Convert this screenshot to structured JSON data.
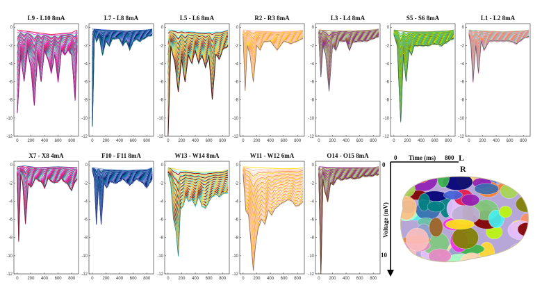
{
  "chart_data": [
    {
      "type": "area",
      "title": "L9 - L10 8mA",
      "xlim": [
        -50,
        900
      ],
      "ylim": [
        -12,
        0.4
      ],
      "xticks": [
        0,
        200,
        400,
        600,
        800
      ],
      "yticks": [
        0,
        -2,
        -4,
        -6,
        -8,
        -10,
        -12
      ],
      "trough": [
        [
          0,
          -9.5
        ],
        [
          50,
          -3
        ],
        [
          100,
          -6
        ],
        [
          150,
          -2.5
        ],
        [
          200,
          -4.5
        ],
        [
          250,
          -8.6
        ],
        [
          300,
          -3
        ],
        [
          350,
          -6
        ],
        [
          400,
          -2.5
        ],
        [
          450,
          -3.5
        ],
        [
          500,
          -5
        ],
        [
          550,
          -3
        ],
        [
          600,
          -6
        ],
        [
          650,
          -2.5
        ],
        [
          700,
          -3
        ],
        [
          750,
          -2.5
        ],
        [
          800,
          -3
        ],
        [
          850,
          -8
        ],
        [
          880,
          -2
        ]
      ],
      "crest": [
        [
          0,
          -0.3
        ],
        [
          200,
          -0.5
        ],
        [
          500,
          -0.8
        ],
        [
          800,
          -0.6
        ],
        [
          880,
          -0.3
        ]
      ]
    },
    {
      "type": "area",
      "title": "L7 - L8 8mA",
      "xlim": [
        -50,
        900
      ],
      "ylim": [
        -12,
        0.4
      ],
      "xticks": [
        0,
        200,
        400,
        600,
        800
      ],
      "yticks": [
        0,
        -2,
        -4,
        -6,
        -8,
        -10,
        -12
      ],
      "trough": [
        [
          0,
          -11
        ],
        [
          30,
          -0.5
        ],
        [
          60,
          -1.5
        ],
        [
          100,
          -1
        ],
        [
          150,
          -3
        ],
        [
          200,
          -1.5
        ],
        [
          250,
          -2
        ],
        [
          300,
          -1.2
        ],
        [
          400,
          -1.2
        ],
        [
          450,
          -2
        ],
        [
          500,
          -1.4
        ],
        [
          550,
          -2.5
        ],
        [
          600,
          -1.5
        ],
        [
          650,
          -1.3
        ],
        [
          700,
          -1.5
        ],
        [
          800,
          -1
        ],
        [
          880,
          -0.8
        ]
      ],
      "crest": [
        [
          0,
          -0.2
        ],
        [
          200,
          -0.3
        ],
        [
          500,
          -0.4
        ],
        [
          800,
          -0.3
        ],
        [
          880,
          -0.2
        ]
      ]
    },
    {
      "type": "area",
      "title": "L5 - L6 8mA",
      "xlim": [
        -50,
        900
      ],
      "ylim": [
        -12,
        0.4
      ],
      "xticks": [
        0,
        200,
        400,
        600,
        800
      ],
      "yticks": [
        0,
        -2,
        -4,
        -6,
        -8,
        -10,
        -12
      ],
      "trough": [
        [
          0,
          -12
        ],
        [
          40,
          -2
        ],
        [
          100,
          -4
        ],
        [
          150,
          -7
        ],
        [
          200,
          -3.5
        ],
        [
          250,
          -6
        ],
        [
          300,
          -3
        ],
        [
          350,
          -4
        ],
        [
          400,
          -2.5
        ],
        [
          450,
          -4
        ],
        [
          500,
          -3
        ],
        [
          550,
          -4.5
        ],
        [
          600,
          -3
        ],
        [
          650,
          -8
        ],
        [
          700,
          -3
        ],
        [
          750,
          -3.5
        ],
        [
          800,
          -2.5
        ],
        [
          880,
          -2
        ]
      ],
      "crest": [
        [
          0,
          -0.3
        ],
        [
          200,
          -0.4
        ],
        [
          500,
          -0.6
        ],
        [
          800,
          -0.5
        ],
        [
          880,
          -0.3
        ]
      ]
    },
    {
      "type": "area",
      "title": "R2 - R3 8mA",
      "xlim": [
        -50,
        900
      ],
      "ylim": [
        -12,
        0.4
      ],
      "xticks": [
        0,
        200,
        400,
        600,
        800
      ],
      "yticks": [
        0,
        -2,
        -4,
        -6,
        -8,
        -10,
        -12
      ],
      "trough": [
        [
          0,
          -1
        ],
        [
          30,
          -7
        ],
        [
          60,
          -2
        ],
        [
          100,
          -3
        ],
        [
          150,
          -6
        ],
        [
          200,
          -2
        ],
        [
          250,
          -2.5
        ],
        [
          300,
          -1.6
        ],
        [
          400,
          -1.5
        ],
        [
          500,
          -2.5
        ],
        [
          600,
          -1.5
        ],
        [
          700,
          -1.8
        ],
        [
          800,
          -1.5
        ],
        [
          880,
          -1.2
        ]
      ],
      "crest": [
        [
          0,
          -0.3
        ],
        [
          200,
          -0.4
        ],
        [
          500,
          -0.5
        ],
        [
          800,
          -0.4
        ],
        [
          880,
          -0.3
        ]
      ]
    },
    {
      "type": "area",
      "title": "L3 - L4 8mA",
      "xlim": [
        -50,
        900
      ],
      "ylim": [
        -12,
        0.4
      ],
      "xticks": [
        0,
        200,
        400,
        600,
        800
      ],
      "yticks": [
        0,
        -2,
        -4,
        -6,
        -8,
        -10,
        -12
      ],
      "trough": [
        [
          0,
          -1
        ],
        [
          30,
          -5.5
        ],
        [
          60,
          -2
        ],
        [
          100,
          -3
        ],
        [
          150,
          -7
        ],
        [
          200,
          -2
        ],
        [
          250,
          -2.5
        ],
        [
          300,
          -1.5
        ],
        [
          400,
          -1.5
        ],
        [
          450,
          -2.5
        ],
        [
          500,
          -1.6
        ],
        [
          600,
          -1.5
        ],
        [
          700,
          -1.5
        ],
        [
          800,
          -1.2
        ],
        [
          880,
          -1
        ]
      ],
      "crest": [
        [
          0,
          -0.3
        ],
        [
          200,
          -0.4
        ],
        [
          500,
          -0.4
        ],
        [
          800,
          -0.3
        ],
        [
          880,
          -0.2
        ]
      ]
    },
    {
      "type": "area",
      "title": "S5 - S6 8mA",
      "xlim": [
        -50,
        900
      ],
      "ylim": [
        -12,
        0.4
      ],
      "xticks": [
        0,
        200,
        400,
        600,
        800
      ],
      "yticks": [
        0,
        -2,
        -4,
        -6,
        -8,
        -10,
        -12
      ],
      "trough": [
        [
          0,
          -0.8
        ],
        [
          50,
          -2
        ],
        [
          100,
          -10.5
        ],
        [
          140,
          -3
        ],
        [
          180,
          -6
        ],
        [
          220,
          -2.5
        ],
        [
          260,
          -3
        ],
        [
          300,
          -2
        ],
        [
          400,
          -2
        ],
        [
          500,
          -2
        ],
        [
          600,
          -1.8
        ],
        [
          700,
          -2
        ],
        [
          800,
          -1.5
        ],
        [
          880,
          -1.2
        ]
      ],
      "crest": [
        [
          0,
          -0.3
        ],
        [
          200,
          -0.5
        ],
        [
          500,
          -0.5
        ],
        [
          800,
          -0.4
        ],
        [
          880,
          -0.3
        ]
      ]
    },
    {
      "type": "area",
      "title": "L1 - L2 8mA",
      "xlim": [
        -50,
        900
      ],
      "ylim": [
        -12,
        0.4
      ],
      "xticks": [
        0,
        200,
        400,
        600,
        800
      ],
      "yticks": [
        0,
        -2,
        -4,
        -6,
        -8,
        -10,
        -12
      ],
      "trough": [
        [
          0,
          -0.8
        ],
        [
          30,
          -2
        ],
        [
          60,
          -6
        ],
        [
          100,
          -2
        ],
        [
          140,
          -5
        ],
        [
          180,
          -1.5
        ],
        [
          220,
          -2.5
        ],
        [
          300,
          -1.5
        ],
        [
          400,
          -1.5
        ],
        [
          500,
          -1.5
        ],
        [
          600,
          -1.5
        ],
        [
          700,
          -1.8
        ],
        [
          800,
          -1.2
        ],
        [
          880,
          -1
        ]
      ],
      "crest": [
        [
          0,
          -0.3
        ],
        [
          200,
          -0.4
        ],
        [
          500,
          -0.5
        ],
        [
          800,
          -0.4
        ],
        [
          880,
          -0.3
        ]
      ]
    },
    {
      "type": "area",
      "title": "X7 - X8 4mA",
      "xlim": [
        -50,
        900
      ],
      "ylim": [
        -12,
        0.4
      ],
      "xticks": [
        0,
        200,
        400,
        600,
        800
      ],
      "yticks": [
        0,
        -2,
        -4,
        -6,
        -8,
        -10,
        -12
      ],
      "trough": [
        [
          0,
          -1
        ],
        [
          20,
          -8.5
        ],
        [
          50,
          -1
        ],
        [
          80,
          -2
        ],
        [
          120,
          -6.5
        ],
        [
          160,
          -2
        ],
        [
          200,
          -2.5
        ],
        [
          260,
          -1.5
        ],
        [
          350,
          -1.8
        ],
        [
          400,
          -2.5
        ],
        [
          450,
          -1.5
        ],
        [
          550,
          -2
        ],
        [
          650,
          -1.5
        ],
        [
          750,
          -2.2
        ],
        [
          800,
          -2.8
        ],
        [
          850,
          -1.8
        ],
        [
          880,
          -1.5
        ]
      ],
      "crest": [
        [
          0,
          -0.2
        ],
        [
          100,
          -0.1
        ],
        [
          300,
          -0.3
        ],
        [
          600,
          -0.2
        ],
        [
          880,
          -0.3
        ]
      ]
    },
    {
      "type": "area",
      "title": "F10 - F11 8mA",
      "xlim": [
        -50,
        900
      ],
      "ylim": [
        -12,
        0.4
      ],
      "xticks": [
        0,
        200,
        400,
        600,
        800
      ],
      "yticks": [
        0,
        -2,
        -4,
        -6,
        -8,
        -10,
        -12
      ],
      "trough": [
        [
          0,
          -0.5
        ],
        [
          30,
          -1.5
        ],
        [
          60,
          -6.5
        ],
        [
          90,
          -2
        ],
        [
          130,
          -6.5
        ],
        [
          170,
          -2
        ],
        [
          210,
          -2.5
        ],
        [
          260,
          -1.8
        ],
        [
          350,
          -2
        ],
        [
          450,
          -1.5
        ],
        [
          550,
          -2.2
        ],
        [
          650,
          -1.5
        ],
        [
          750,
          -2
        ],
        [
          800,
          -2.5
        ],
        [
          880,
          -1.5
        ]
      ],
      "crest": [
        [
          0,
          -0.3
        ],
        [
          200,
          -0.5
        ],
        [
          500,
          -0.6
        ],
        [
          800,
          -0.5
        ],
        [
          880,
          -0.3
        ]
      ]
    },
    {
      "type": "area",
      "title": "W13 - W14 8mA",
      "xlim": [
        -50,
        900
      ],
      "ylim": [
        -12,
        0.4
      ],
      "xticks": [
        0,
        200,
        400,
        600,
        800
      ],
      "yticks": [
        0,
        -2,
        -4,
        -6,
        -8,
        -10,
        -12
      ],
      "trough": [
        [
          0,
          -1
        ],
        [
          40,
          -2
        ],
        [
          80,
          -6
        ],
        [
          120,
          -7.5
        ],
        [
          150,
          -10
        ],
        [
          180,
          -5
        ],
        [
          220,
          -4.5
        ],
        [
          260,
          -3.5
        ],
        [
          300,
          -4
        ],
        [
          350,
          -3.8
        ],
        [
          400,
          -4.5
        ],
        [
          450,
          -3.5
        ],
        [
          500,
          -4.5
        ],
        [
          550,
          -4.8
        ],
        [
          600,
          -4
        ],
        [
          650,
          -3.5
        ],
        [
          700,
          -3.2
        ],
        [
          750,
          -3.5
        ],
        [
          800,
          -3.2
        ],
        [
          880,
          -3
        ]
      ],
      "crest": [
        [
          0,
          -0.3
        ],
        [
          200,
          -0.6
        ],
        [
          500,
          -0.8
        ],
        [
          800,
          -0.7
        ],
        [
          880,
          -0.5
        ]
      ]
    },
    {
      "type": "area",
      "title": "W11 - W12 6mA",
      "xlim": [
        -50,
        900
      ],
      "ylim": [
        -12,
        0.4
      ],
      "xticks": [
        0,
        200,
        400,
        600,
        800
      ],
      "yticks": [
        0,
        -2,
        -4,
        -6,
        -8,
        -10,
        -12
      ],
      "trough": [
        [
          0,
          -1
        ],
        [
          40,
          -5
        ],
        [
          80,
          -5.5
        ],
        [
          120,
          -9
        ],
        [
          150,
          -11.6
        ],
        [
          180,
          -9
        ],
        [
          220,
          -7
        ],
        [
          270,
          -6
        ],
        [
          320,
          -6.5
        ],
        [
          370,
          -5
        ],
        [
          420,
          -5.5
        ],
        [
          470,
          -4.8
        ],
        [
          520,
          -4.5
        ],
        [
          570,
          -4.2
        ],
        [
          620,
          -4
        ],
        [
          670,
          -3.8
        ],
        [
          720,
          -4
        ],
        [
          770,
          -4.5
        ],
        [
          820,
          -4.5
        ],
        [
          880,
          -4
        ]
      ],
      "crest": [
        [
          0,
          -0.2
        ],
        [
          200,
          -0.3
        ],
        [
          500,
          -0.4
        ],
        [
          800,
          -0.4
        ],
        [
          880,
          -0.3
        ]
      ]
    },
    {
      "type": "area",
      "title": "O14 - O15 8mA",
      "xlim": [
        -50,
        900
      ],
      "ylim": [
        -12,
        0.4
      ],
      "xticks": [
        0,
        200,
        400,
        600,
        800
      ],
      "yticks": [
        0,
        -2,
        -4,
        -6,
        -8,
        -10,
        -12
      ],
      "trough": [
        [
          0,
          -1
        ],
        [
          30,
          -12
        ],
        [
          60,
          -1.5
        ],
        [
          90,
          -3
        ],
        [
          130,
          -4
        ],
        [
          170,
          -2
        ],
        [
          210,
          -2.2
        ],
        [
          260,
          -1.5
        ],
        [
          350,
          -1.6
        ],
        [
          450,
          -1.4
        ],
        [
          550,
          -1.5
        ],
        [
          650,
          -1.2
        ],
        [
          750,
          -1.2
        ],
        [
          880,
          -1
        ]
      ],
      "crest": [
        [
          0,
          -0.2
        ],
        [
          200,
          -0.3
        ],
        [
          500,
          -0.3
        ],
        [
          800,
          -0.3
        ],
        [
          880,
          -0.2
        ]
      ]
    }
  ],
  "inset": {
    "x_zero": "0",
    "x_max": "800",
    "x_label": "Time (ms)",
    "y_zero": "0",
    "y_ten": "10",
    "y_label": "Voltage (mV)",
    "left_label": "L",
    "right_label": "R"
  },
  "palette": [
    "#e6194b",
    "#3cb44b",
    "#ffe119",
    "#4363d8",
    "#f58231",
    "#911eb4",
    "#46f0f0",
    "#f032e6",
    "#bcf60c",
    "#fabebe",
    "#008080",
    "#e6beff",
    "#9a6324",
    "#800000",
    "#aaffc3",
    "#808000",
    "#ffd8b1",
    "#000075",
    "#7fc97f",
    "#beaed4",
    "#fdc086",
    "#386cb0",
    "#66c2a5",
    "#fc8d62",
    "#8da0cb",
    "#e78ac3",
    "#a6d854",
    "#ffd92f"
  ]
}
